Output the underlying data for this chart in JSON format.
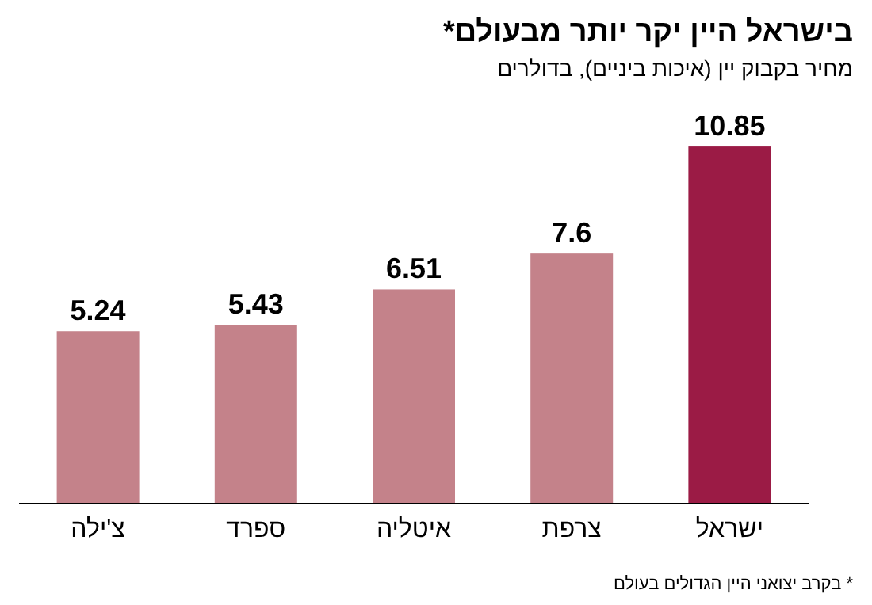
{
  "chart_data": {
    "type": "bar",
    "title": "בישראל היין יקר יותר מבעולם*",
    "subtitle": "מחיר בקבוק יין (איכות ביניים), בדולרים",
    "categories": [
      "צ'ילה",
      "ספרד",
      "איטליה",
      "צרפת",
      "ישראל"
    ],
    "values": [
      5.24,
      5.43,
      6.51,
      7.6,
      10.85
    ],
    "colors": [
      "#c4828a",
      "#c4828a",
      "#c4828a",
      "#c4828a",
      "#9b1b45"
    ],
    "data_labels": true,
    "annotations": [
      "* בקרב יצואני היין הגדולים בעולם"
    ]
  }
}
